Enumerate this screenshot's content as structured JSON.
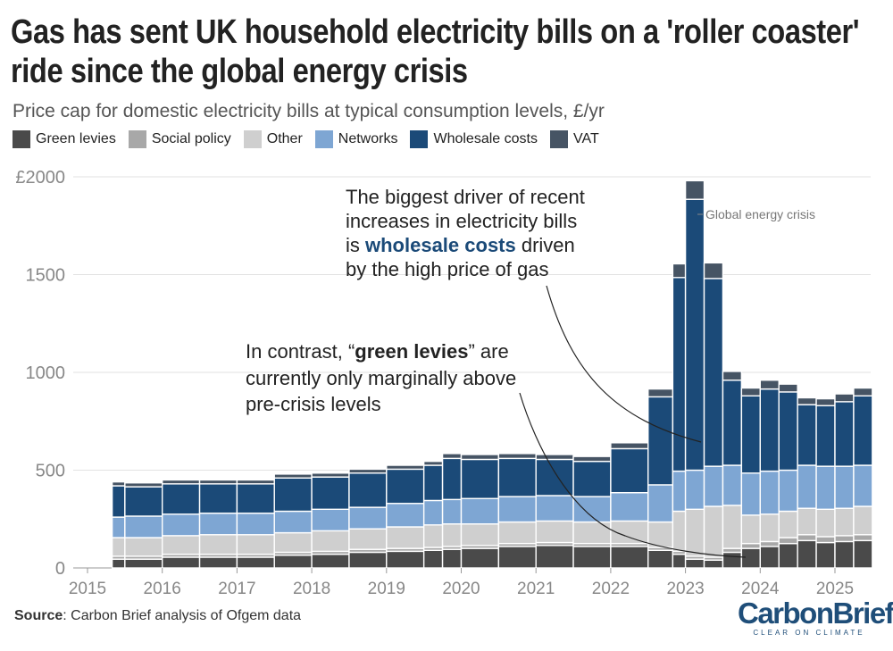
{
  "header": {
    "title": "Gas has sent UK household electricity bills on a 'roller coaster' ride since the global energy crisis",
    "subtitle": "Price cap for domestic electricity bills at typical consumption levels, £/yr"
  },
  "legend": [
    {
      "label": "Green levies",
      "color": "#4a4a4a"
    },
    {
      "label": "Social policy",
      "color": "#a8a8a8"
    },
    {
      "label": "Other",
      "color": "#cfcfcf"
    },
    {
      "label": "Networks",
      "color": "#7ea6d3"
    },
    {
      "label": "Wholesale costs",
      "color": "#1b4a78"
    },
    {
      "label": "VAT",
      "color": "#465464"
    }
  ],
  "annotations": {
    "wholesale_pre": "The biggest driver of recent",
    "wholesale_l2": "increases in electricity bills",
    "wholesale_is": "is ",
    "wholesale_bold": "wholesale costs",
    "wholesale_after": " driven",
    "wholesale_l4": "by the high price of gas",
    "green_pre": "In contrast, “",
    "green_bold": "green levies",
    "green_after": "” are",
    "green_l2": "currently only marginally above",
    "green_l3": "pre-crisis levels",
    "crisis": "Global energy crisis"
  },
  "footer": {
    "source_label": "Source",
    "source_text": ": Carbon Brief analysis of Ofgem data",
    "logo_main": "CarbonBrief",
    "logo_sub": "CLEAR ON CLIMATE"
  },
  "chart_data": {
    "type": "stacked-area-step",
    "title": "Price cap for domestic electricity bills at typical consumption levels, £/yr",
    "xlabel": "",
    "ylabel": "£/yr",
    "ylim": [
      0,
      2000
    ],
    "xlim": [
      2015,
      2025.5
    ],
    "y_ticks": [
      {
        "value": 0,
        "label": "0"
      },
      {
        "value": 500,
        "label": "500"
      },
      {
        "value": 1000,
        "label": "1000"
      },
      {
        "value": 1500,
        "label": "1500"
      },
      {
        "value": 2000,
        "label": "£2000"
      }
    ],
    "x_ticks": [
      "2015",
      "2016",
      "2017",
      "2018",
      "2019",
      "2020",
      "2021",
      "2022",
      "2023",
      "2024",
      "2025"
    ],
    "periods": [
      2015.33,
      2015.5,
      2016.0,
      2016.5,
      2017.0,
      2017.5,
      2018.0,
      2018.5,
      2019.0,
      2019.5,
      2019.75,
      2020.0,
      2020.5,
      2021.0,
      2021.5,
      2022.0,
      2022.5,
      2022.83,
      2023.0,
      2023.25,
      2023.5,
      2023.75,
      2024.0,
      2024.25,
      2024.5,
      2024.75,
      2025.0,
      2025.25
    ],
    "period_end": 2025.5,
    "series": [
      {
        "name": "Green levies",
        "color": "#4a4a4a",
        "values": [
          45,
          45,
          55,
          55,
          55,
          65,
          70,
          80,
          85,
          90,
          95,
          100,
          110,
          115,
          110,
          110,
          90,
          70,
          45,
          40,
          80,
          100,
          110,
          125,
          140,
          130,
          135,
          140
        ]
      },
      {
        "name": "Social policy",
        "color": "#a8a8a8",
        "values": [
          15,
          15,
          15,
          15,
          15,
          15,
          15,
          15,
          15,
          15,
          15,
          15,
          15,
          15,
          15,
          15,
          15,
          15,
          15,
          15,
          20,
          25,
          25,
          30,
          30,
          30,
          30,
          30
        ]
      },
      {
        "name": "Other",
        "color": "#cfcfcf",
        "values": [
          95,
          95,
          95,
          100,
          100,
          100,
          105,
          105,
          110,
          115,
          115,
          110,
          110,
          110,
          110,
          115,
          130,
          205,
          240,
          260,
          220,
          145,
          140,
          135,
          135,
          140,
          140,
          145
        ]
      },
      {
        "name": "Networks",
        "color": "#7ea6d3",
        "values": [
          105,
          110,
          110,
          110,
          110,
          110,
          110,
          110,
          120,
          125,
          125,
          130,
          130,
          130,
          130,
          145,
          190,
          205,
          200,
          205,
          205,
          215,
          220,
          210,
          220,
          220,
          215,
          210
        ]
      },
      {
        "name": "Wholesale costs",
        "color": "#1b4a78",
        "values": [
          160,
          150,
          155,
          150,
          150,
          170,
          165,
          175,
          175,
          180,
          210,
          200,
          195,
          185,
          180,
          225,
          450,
          990,
          1385,
          960,
          435,
          395,
          420,
          400,
          310,
          310,
          330,
          355
        ]
      },
      {
        "name": "VAT",
        "color": "#465464",
        "values": [
          20,
          20,
          20,
          20,
          20,
          20,
          20,
          20,
          20,
          20,
          25,
          25,
          25,
          25,
          25,
          30,
          40,
          70,
          95,
          80,
          45,
          40,
          45,
          40,
          35,
          35,
          40,
          40
        ]
      }
    ]
  }
}
